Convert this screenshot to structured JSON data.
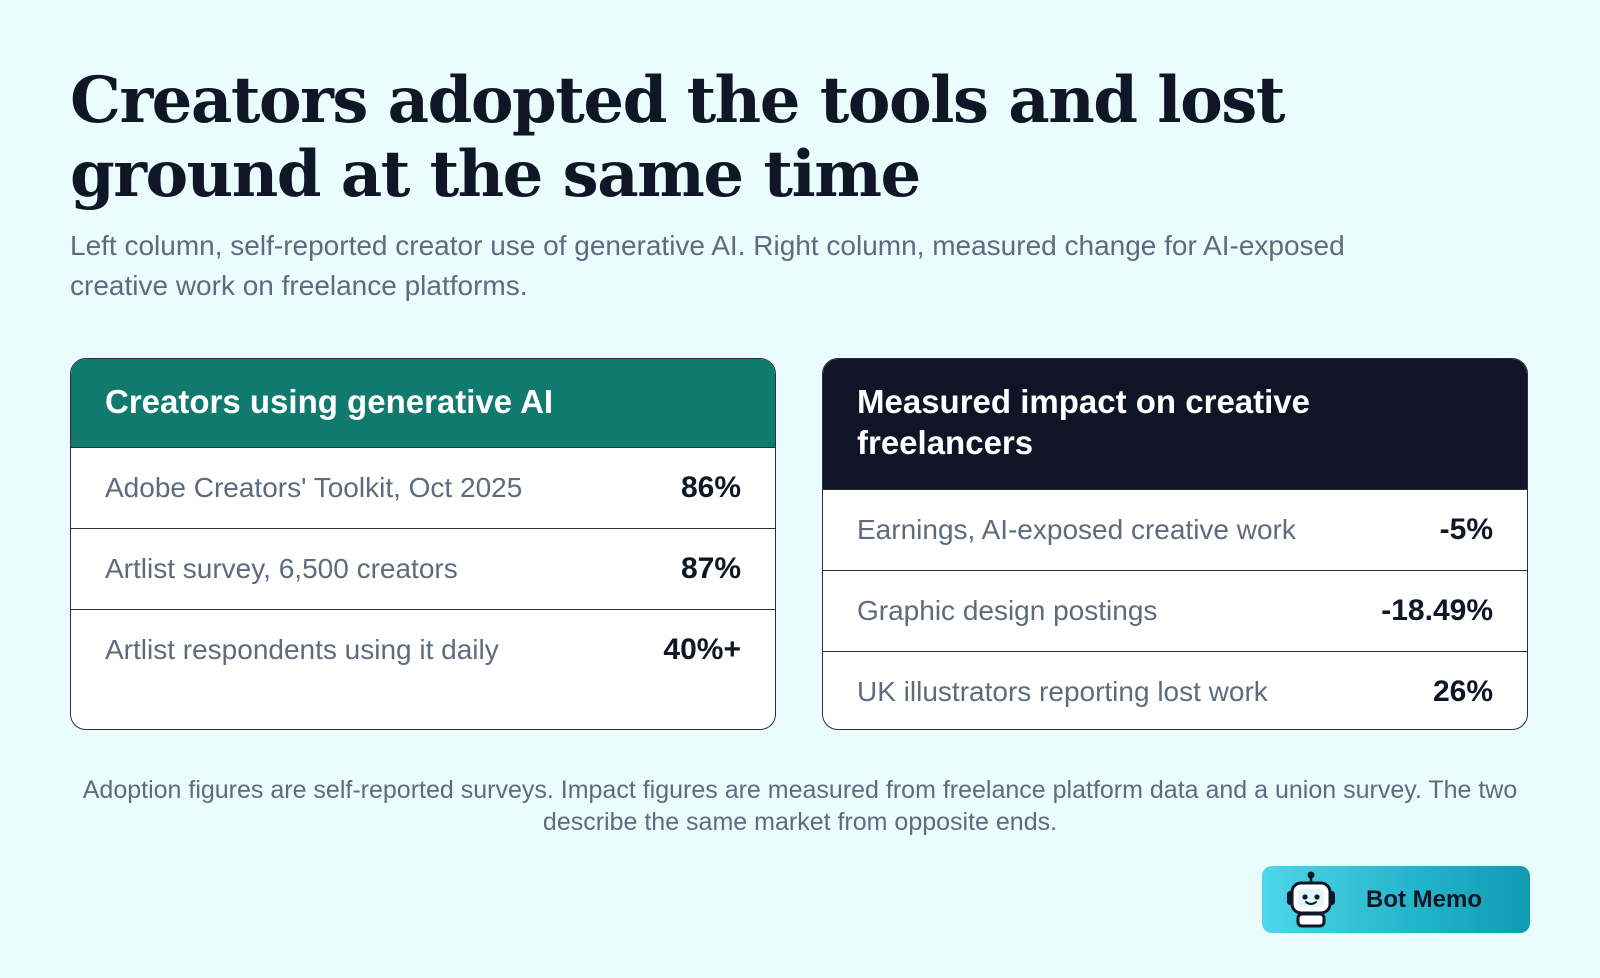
{
  "title": "Creators adopted the tools and lost ground at the same time",
  "subtitle": "Left column, self-reported creator use of generative AI. Right column, measured change for AI-exposed creative work on freelance platforms.",
  "left_card": {
    "heading": "Creators using generative AI",
    "rows": [
      {
        "label": "Adobe Creators' Toolkit, Oct 2025",
        "value": "86%"
      },
      {
        "label": "Artlist survey, 6,500 creators",
        "value": "87%"
      },
      {
        "label": "Artlist respondents using it daily",
        "value": "40%+"
      }
    ]
  },
  "right_card": {
    "heading": "Measured impact on creative freelancers",
    "rows": [
      {
        "label": "Earnings, AI-exposed creative work",
        "value": "-5%"
      },
      {
        "label": "Graphic design postings",
        "value": "-18.49%"
      },
      {
        "label": "UK illustrators reporting lost work",
        "value": "26%"
      }
    ]
  },
  "footnote": "Adoption figures are self-reported surveys. Impact figures are measured from freelance platform data and a union survey. The two describe the same market from opposite ends.",
  "brand": {
    "label": "Bot Memo",
    "icon": "robot-icon"
  },
  "colors": {
    "background": "#eafcfe",
    "left_header": "#117a6f",
    "right_header": "#0f1526",
    "muted_text": "#5e6b7f",
    "brand_gradient_start": "#4fd6ea",
    "brand_gradient_end": "#109bb2"
  }
}
